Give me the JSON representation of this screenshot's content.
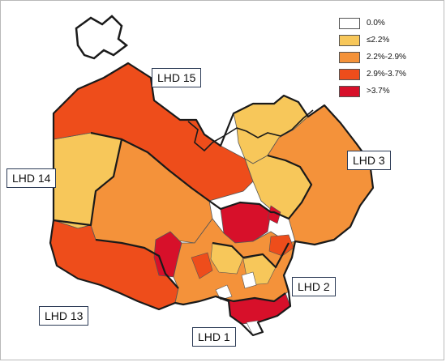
{
  "legend": {
    "items": [
      {
        "label": "0.0%",
        "color": "#ffffff"
      },
      {
        "label": "≤2.2%",
        "color": "#f7c75a"
      },
      {
        "label": "2.2%-2.9%",
        "color": "#f4923a"
      },
      {
        "label": "2.9%-3.7%",
        "color": "#ee4d1b"
      },
      {
        "label": ">3.7%",
        "color": "#d7102a"
      }
    ]
  },
  "districts": {
    "lhd15": "LHD 15",
    "lhd14": "LHD 14",
    "lhd3": "LHD 3",
    "lhd2": "LHD 2",
    "lhd13": "LHD 13",
    "lhd1": "LHD 1"
  },
  "colors": {
    "border": "#1a1a1a",
    "label_border": "#2b3a55"
  }
}
